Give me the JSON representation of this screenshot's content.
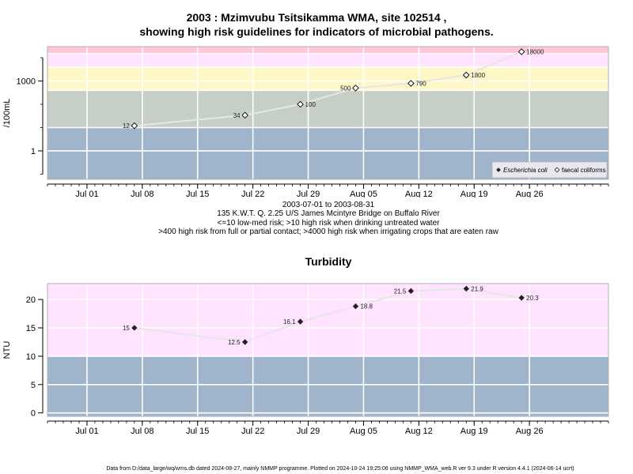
{
  "title_line1": "2003 : Mzimvubu Tsitsikamma WMA, site 102514 ,",
  "title_line2": "showing high risk guidelines for indicators of microbial pathogens.",
  "info": {
    "date_range": "2003-07-01 to 2003-08-31",
    "site": "135 K.W.T. Q. 2.25 U/S James Mcintyre Bridge on Buffalo River",
    "risk_line1": "<=10 low-med risk; >10 high risk when drinking untreated water",
    "risk_line2": ">400 high risk from full or partial contact; >4000 high risk when irrigating crops that are eaten raw"
  },
  "turbidity_title": "Turbidity",
  "footer": "Data from D:/data_large/wq/wms.db dated 2024-08-27, mainly NMMP programme. Plotted on 2024-10-24 19:25:06 using NMMP_WMA_web.R ver 9.3 under R version 4.4.1 (2024-06-14 ucrt)",
  "chart_data": [
    {
      "type": "line",
      "title": "2003 : Mzimvubu Tsitsikamma WMA, site 102514 , showing high risk guidelines for indicators of microbial pathogens.",
      "ylabel": "/100mL",
      "yscale": "log",
      "x_tick_labels": [
        "Jul 01",
        "Jul 08",
        "Jul 15",
        "Jul 22",
        "Jul 29",
        "Aug 05",
        "Aug 12",
        "Aug 19",
        "Aug 26"
      ],
      "x_ticks": [
        "2003-07-01",
        "2003-07-08",
        "2003-07-15",
        "2003-07-22",
        "2003-07-29",
        "2003-08-05",
        "2003-08-12",
        "2003-08-19",
        "2003-08-26"
      ],
      "y_tick_labels": [
        "1",
        "1000"
      ],
      "y_ticks": [
        1,
        1000
      ],
      "xlim": [
        "2003-06-26",
        "2003-09-05"
      ],
      "ylim": [
        0.06,
        30000
      ],
      "bands": [
        {
          "from": 0.06,
          "to": 10,
          "color": "#a0b4cc"
        },
        {
          "from": 10,
          "to": 400,
          "color": "#c5cfc5"
        },
        {
          "from": 400,
          "to": 4000,
          "color": "#fdf8c6"
        },
        {
          "from": 4000,
          "to": 15000,
          "color": "#ffe3ff"
        },
        {
          "from": 15000,
          "to": 30000,
          "color": "#ffc6d8"
        }
      ],
      "legend": {
        "placement": "bottom-right",
        "entries": [
          "Escherichia coli",
          "faecal coliforms"
        ]
      },
      "series": [
        {
          "name": "faecal coliforms",
          "color": "#e6e6e6",
          "points": [
            {
              "x": "2003-07-07",
              "y": 12,
              "label": "12"
            },
            {
              "x": "2003-07-21",
              "y": 34,
              "label": "34"
            },
            {
              "x": "2003-07-28",
              "y": 100,
              "label": "100"
            },
            {
              "x": "2003-08-04",
              "y": 500,
              "label": "500"
            },
            {
              "x": "2003-08-11",
              "y": 790,
              "label": "790"
            },
            {
              "x": "2003-08-18",
              "y": 1800,
              "label": "1800"
            },
            {
              "x": "2003-08-25",
              "y": 18000,
              "label": "18000"
            }
          ]
        }
      ]
    },
    {
      "type": "line",
      "title": "Turbidity",
      "ylabel": "NTU",
      "x_tick_labels": [
        "Jul 01",
        "Jul 08",
        "Jul 15",
        "Jul 22",
        "Jul 29",
        "Aug 05",
        "Aug 12",
        "Aug 19",
        "Aug 26"
      ],
      "x_ticks": [
        "2003-07-01",
        "2003-07-08",
        "2003-07-15",
        "2003-07-22",
        "2003-07-29",
        "2003-08-05",
        "2003-08-12",
        "2003-08-19",
        "2003-08-26"
      ],
      "y_tick_labels": [
        "0",
        "5",
        "10",
        "15",
        "20"
      ],
      "y_ticks": [
        0,
        5,
        10,
        15,
        20
      ],
      "xlim": [
        "2003-06-26",
        "2003-09-05"
      ],
      "ylim": [
        -0.6,
        22.8
      ],
      "bands": [
        {
          "from": -0.6,
          "to": 10,
          "color": "#a0b4cc"
        },
        {
          "from": 10,
          "to": 22.8,
          "color": "#ffe3ff"
        }
      ],
      "series": [
        {
          "color": "#e6e6e6",
          "points": [
            {
              "x": "2003-07-07",
              "y": 15,
              "label": "15"
            },
            {
              "x": "2003-07-21",
              "y": 12.5,
              "label": "12.5"
            },
            {
              "x": "2003-07-28",
              "y": 16.1,
              "label": "16.1"
            },
            {
              "x": "2003-08-04",
              "y": 18.8,
              "label": "18.8"
            },
            {
              "x": "2003-08-11",
              "y": 21.5,
              "label": "21.5"
            },
            {
              "x": "2003-08-18",
              "y": 21.9,
              "label": "21.9"
            },
            {
              "x": "2003-08-25",
              "y": 20.3,
              "label": "20.3"
            }
          ]
        }
      ]
    }
  ]
}
